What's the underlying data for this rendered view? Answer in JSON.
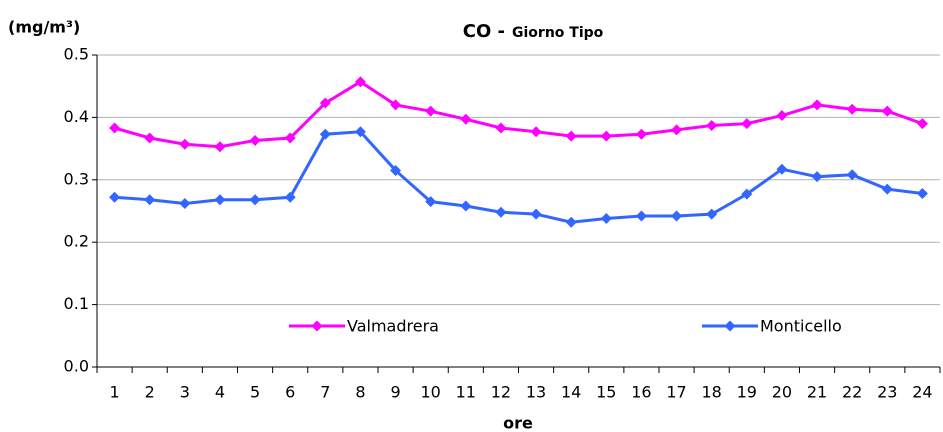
{
  "chart_data": {
    "type": "line",
    "title": "CO -",
    "subtitle": "Giorno Tipo",
    "y_label": "(mg/m³)",
    "x_label": "ore",
    "categories": [
      "1",
      "2",
      "3",
      "4",
      "5",
      "6",
      "7",
      "8",
      "9",
      "10",
      "11",
      "12",
      "13",
      "14",
      "15",
      "16",
      "17",
      "18",
      "19",
      "20",
      "21",
      "22",
      "23",
      "24"
    ],
    "series": [
      {
        "name": "Valmadrera",
        "color": "#ff00ff",
        "values": [
          0.383,
          0.367,
          0.357,
          0.353,
          0.363,
          0.367,
          0.423,
          0.457,
          0.42,
          0.41,
          0.397,
          0.383,
          0.377,
          0.37,
          0.37,
          0.373,
          0.38,
          0.387,
          0.39,
          0.403,
          0.42,
          0.413,
          0.41,
          0.39
        ]
      },
      {
        "name": "Monticello",
        "color": "#3366ff",
        "values": [
          0.272,
          0.268,
          0.262,
          0.268,
          0.268,
          0.272,
          0.373,
          0.377,
          0.315,
          0.265,
          0.258,
          0.248,
          0.245,
          0.232,
          0.238,
          0.242,
          0.242,
          0.245,
          0.277,
          0.317,
          0.305,
          0.308,
          0.285,
          0.278
        ]
      }
    ],
    "ylim": [
      0,
      0.5
    ],
    "yticks": [
      {
        "value": 0,
        "label": "0.0"
      },
      0.1,
      0.2,
      0.3,
      0.4,
      0.5
    ],
    "grid": true
  }
}
